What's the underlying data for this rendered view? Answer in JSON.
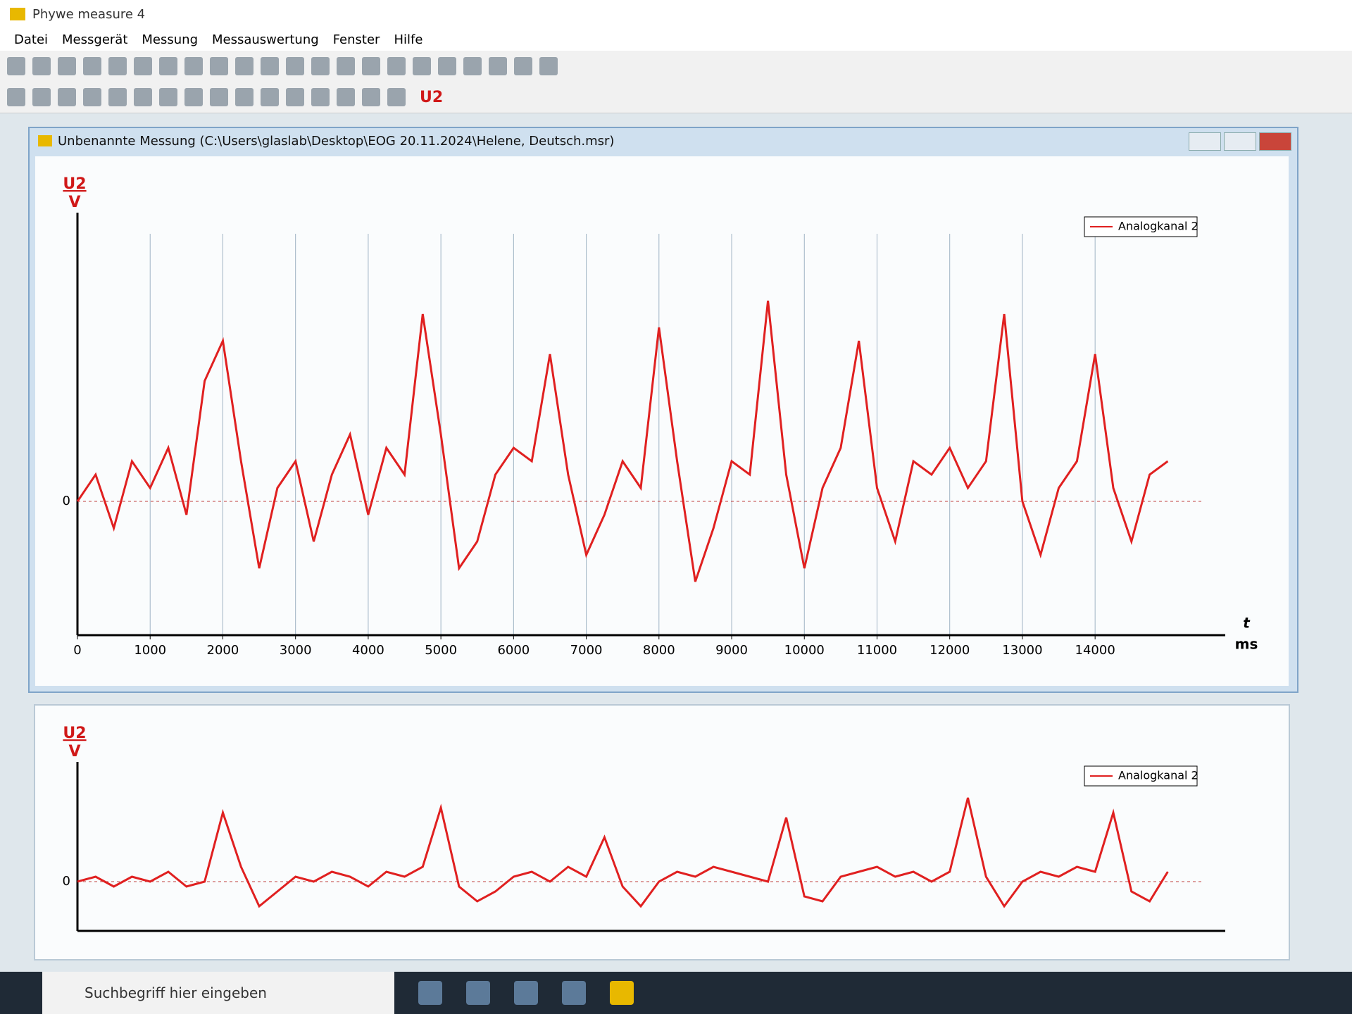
{
  "app_title": "Phywe measure 4",
  "menu": [
    "Datei",
    "Messgerät",
    "Messung",
    "Messauswertung",
    "Fenster",
    "Hilfe"
  ],
  "toolbar_channel": "U2",
  "document_title": "Unbenannte Messung (C:\\Users\\glaslab\\Desktop\\EOG 20.11.2024\\Helene, Deutsch.msr)",
  "taskbar_search": "Suchbegriff hier eingeben",
  "chart_data": [
    {
      "type": "line",
      "ylabel": "U2",
      "yunit": "V",
      "xlabel": "t",
      "xunit": "ms",
      "x": [
        0,
        250,
        500,
        750,
        1000,
        1250,
        1500,
        1750,
        2000,
        2250,
        2500,
        2750,
        3000,
        3250,
        3500,
        3750,
        4000,
        4250,
        4500,
        4750,
        5000,
        5250,
        5500,
        5750,
        6000,
        6250,
        6500,
        6750,
        7000,
        7250,
        7500,
        7750,
        8000,
        8250,
        8500,
        8750,
        9000,
        9250,
        9500,
        9750,
        10000,
        10250,
        10500,
        10750,
        11000,
        11250,
        11500,
        11750,
        12000,
        12250,
        12500,
        12750,
        13000,
        13250,
        13500,
        13750,
        14000,
        14250,
        14500,
        14750,
        15000
      ],
      "series": [
        {
          "name": "Analogkanal 2",
          "color": "#e02020",
          "values": [
            0.0,
            0.2,
            -0.2,
            0.3,
            0.1,
            0.4,
            -0.1,
            0.9,
            1.2,
            0.3,
            -0.5,
            0.1,
            0.3,
            -0.3,
            0.2,
            0.5,
            -0.1,
            0.4,
            0.2,
            1.4,
            0.5,
            -0.5,
            -0.3,
            0.2,
            0.4,
            0.3,
            1.1,
            0.2,
            -0.4,
            -0.1,
            0.3,
            0.1,
            1.3,
            0.3,
            -0.6,
            -0.2,
            0.3,
            0.2,
            1.5,
            0.2,
            -0.5,
            0.1,
            0.4,
            1.2,
            0.1,
            -0.3,
            0.3,
            0.2,
            0.4,
            0.1,
            0.3,
            1.4,
            0.0,
            -0.4,
            0.1,
            0.3,
            1.1,
            0.1,
            -0.3,
            0.2,
            0.3
          ]
        }
      ],
      "xlim": [
        0,
        15500
      ],
      "ylim": [
        -1,
        2
      ],
      "xticks": [
        0,
        1000,
        2000,
        3000,
        4000,
        5000,
        6000,
        7000,
        8000,
        9000,
        10000,
        11000,
        12000,
        13000,
        14000
      ],
      "yticks": [
        0
      ],
      "grid": true,
      "legend": "upper right"
    },
    {
      "type": "line",
      "ylabel": "U2",
      "yunit": "V",
      "x": [
        0,
        250,
        500,
        750,
        1000,
        1250,
        1500,
        1750,
        2000,
        2250,
        2500,
        2750,
        3000,
        3250,
        3500,
        3750,
        4000,
        4250,
        4500,
        4750,
        5000,
        5250,
        5500,
        5750,
        6000,
        6250,
        6500,
        6750,
        7000,
        7250,
        7500,
        7750,
        8000,
        8250,
        8500,
        8750,
        9000,
        9250,
        9500,
        9750,
        10000,
        10250,
        10500,
        10750,
        11000,
        11250,
        11500,
        11750,
        12000,
        12250,
        12500,
        12750,
        13000,
        13250,
        13500,
        13750,
        14000,
        14250,
        14500,
        14750,
        15000
      ],
      "series": [
        {
          "name": "Analogkanal 2",
          "color": "#e02020",
          "values": [
            0.0,
            0.1,
            -0.1,
            0.1,
            0.0,
            0.2,
            -0.1,
            0.0,
            1.4,
            0.3,
            -0.5,
            -0.2,
            0.1,
            0.0,
            0.2,
            0.1,
            -0.1,
            0.2,
            0.1,
            0.3,
            1.5,
            -0.1,
            -0.4,
            -0.2,
            0.1,
            0.2,
            0.0,
            0.3,
            0.1,
            0.9,
            -0.1,
            -0.5,
            0.0,
            0.2,
            0.1,
            0.3,
            0.2,
            0.1,
            0.0,
            1.3,
            -0.3,
            -0.4,
            0.1,
            0.2,
            0.3,
            0.1,
            0.2,
            0.0,
            0.2,
            1.7,
            0.1,
            -0.5,
            0.0,
            0.2,
            0.1,
            0.3,
            0.2,
            1.4,
            -0.2,
            -0.4,
            0.2
          ]
        }
      ],
      "xlim": [
        0,
        15500
      ],
      "ylim": [
        -1,
        2
      ],
      "yticks": [
        0
      ],
      "grid": false,
      "legend": "upper right"
    }
  ]
}
